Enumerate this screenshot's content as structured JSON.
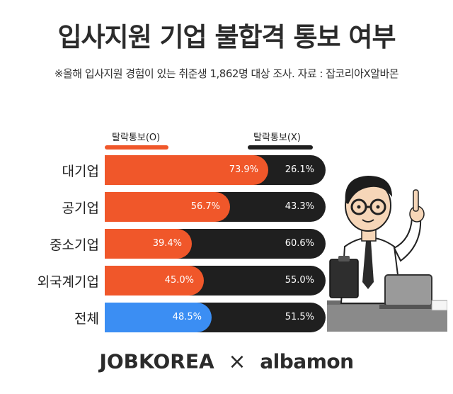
{
  "header": {
    "title": "입사지원 기업 불합격 통보 여부",
    "subtitle": "※올해 입사지원 경험이 있는 취준생 1,862명 대상 조사. 자료 : 잡코리아X알바몬"
  },
  "legend": {
    "notified": "탈락통보(O)",
    "not_notified": "탈락통보(X)"
  },
  "colors": {
    "notified": "#f0572a",
    "total_notified": "#3b8ef3",
    "not_notified": "#1f1f1f"
  },
  "chart_data": {
    "type": "bar",
    "stacked": true,
    "orientation": "horizontal",
    "categories": [
      "대기업",
      "공기업",
      "중소기업",
      "외국계기업",
      "전체"
    ],
    "series": [
      {
        "name": "탈락통보(O)",
        "values": [
          73.9,
          56.7,
          39.4,
          45.0,
          48.5
        ]
      },
      {
        "name": "탈락통보(X)",
        "values": [
          26.1,
          43.3,
          60.6,
          55.0,
          51.5
        ]
      }
    ],
    "labels_notified": [
      "73.9%",
      "56.7%",
      "39.4%",
      "45.0%",
      "48.5%"
    ],
    "labels_not_notified": [
      "26.1%",
      "43.3%",
      "60.6%",
      "55.0%",
      "51.5%"
    ],
    "xlim": [
      0,
      100
    ]
  },
  "footer": {
    "logo_left": "JOBKOREA",
    "logo_sep": "×",
    "logo_right": "albamon"
  }
}
